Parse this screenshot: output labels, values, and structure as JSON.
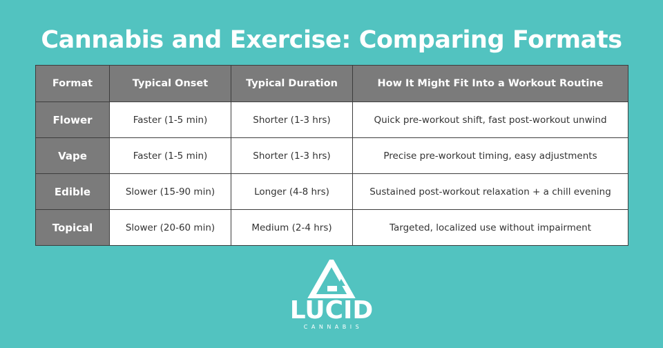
{
  "title": "Cannabis and Exercise: Comparing Formats",
  "table": {
    "headers": [
      "Format",
      "Typical Onset",
      "Typical Duration",
      "How It Might Fit Into a Workout Routine"
    ],
    "rows": [
      [
        "Flower",
        "Faster (1-5 min)",
        "Shorter (1-3 hrs)",
        "Quick pre-workout shift, fast post-workout unwind"
      ],
      [
        "Vape",
        "Faster (1-5 min)",
        "Shorter (1-3 hrs)",
        "Precise pre-workout timing, easy adjustments"
      ],
      [
        "Edible",
        "Slower (15-90 min)",
        "Longer (4-8 hrs)",
        "Sustained post-workout relaxation + a chill evening"
      ],
      [
        "Topical",
        "Slower (20-60 min)",
        "Medium (2-4 hrs)",
        "Targeted, localized use without impairment"
      ]
    ]
  },
  "logo": {
    "name": "LUCID",
    "subtitle": "CANNABIS",
    "icon": "triangle-mark-icon"
  },
  "colors": {
    "background": "#52c3c0",
    "header_fill": "#7b7b7b",
    "cell_fill": "#ffffff",
    "border": "#3c3c3c",
    "text_light": "#ffffff",
    "text_dark": "#333333"
  }
}
